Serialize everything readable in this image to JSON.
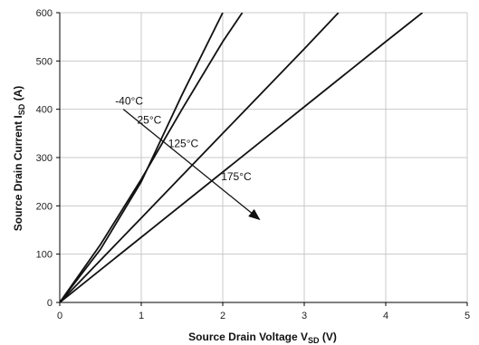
{
  "chart_data": {
    "type": "line",
    "title": "",
    "xlabel": {
      "main": "Source Drain Voltage V",
      "sub": "SD",
      "suffix": " (V)"
    },
    "ylabel": {
      "main": "Source Drain Current I",
      "sub": "SD",
      "suffix": " (A)"
    },
    "xlim": [
      0,
      5
    ],
    "ylim": [
      0,
      600
    ],
    "xticks": [
      0,
      1,
      2,
      3,
      4,
      5
    ],
    "yticks": [
      0,
      100,
      200,
      300,
      400,
      500,
      600
    ],
    "grid": true,
    "series": [
      {
        "name": "-40°C",
        "x": [
          0,
          0.5,
          1.0,
          1.5,
          2.0
        ],
        "y": [
          0,
          110,
          250,
          430,
          600
        ]
      },
      {
        "name": "25°C",
        "x": [
          0,
          0.5,
          1.0,
          1.5,
          2.0,
          2.24
        ],
        "y": [
          0,
          120,
          255,
          400,
          540,
          600
        ]
      },
      {
        "name": "125°C",
        "x": [
          0,
          1.0,
          2.0,
          3.0,
          3.42
        ],
        "y": [
          0,
          175,
          350,
          525,
          600
        ]
      },
      {
        "name": "175°C",
        "x": [
          0,
          1.0,
          2.0,
          3.0,
          4.0,
          4.45
        ],
        "y": [
          0,
          135,
          270,
          405,
          540,
          600
        ]
      }
    ],
    "annotation_arrow": {
      "from": [
        0.78,
        400
      ],
      "to": [
        2.45,
        172
      ]
    },
    "annotation_labels": [
      {
        "text": "-40°C",
        "x": 0.68,
        "y": 410
      },
      {
        "text": "25°C",
        "x": 0.95,
        "y": 370
      },
      {
        "text": "125°C",
        "x": 1.33,
        "y": 322
      },
      {
        "text": "175°C",
        "x": 1.98,
        "y": 253
      }
    ],
    "colors": {
      "line": "#111111",
      "grid": "#c8c8c8",
      "axis": "#000000",
      "background": "#ffffff"
    }
  }
}
